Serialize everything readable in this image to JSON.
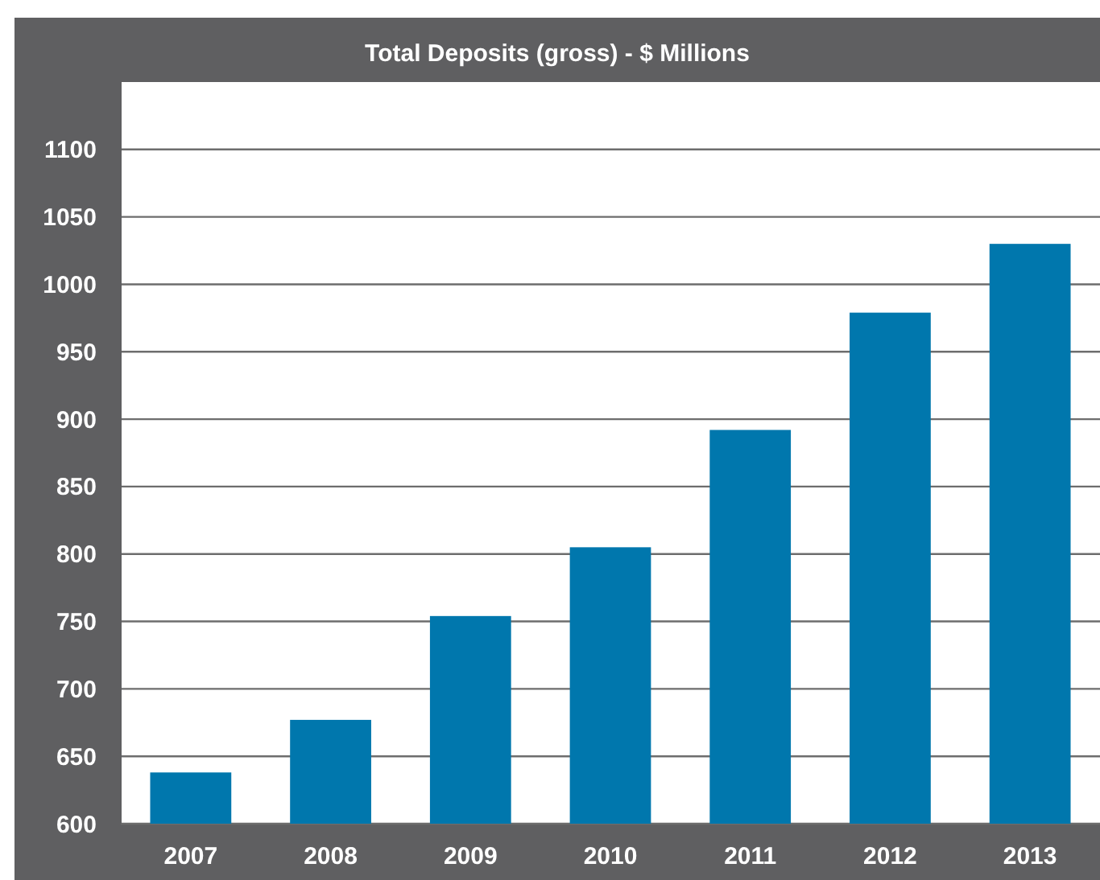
{
  "chart_data": {
    "type": "bar",
    "title": "Total Deposits (gross) - $ Millions",
    "categories": [
      "2007",
      "2008",
      "2009",
      "2010",
      "2011",
      "2012",
      "2013"
    ],
    "values": [
      638,
      677,
      754,
      805,
      892,
      979,
      1030
    ],
    "color": "#0077ad",
    "ylim": [
      600,
      1150
    ],
    "yticks": [
      600,
      650,
      700,
      750,
      800,
      850,
      900,
      950,
      1000,
      1050,
      1100
    ],
    "grid": "y"
  }
}
